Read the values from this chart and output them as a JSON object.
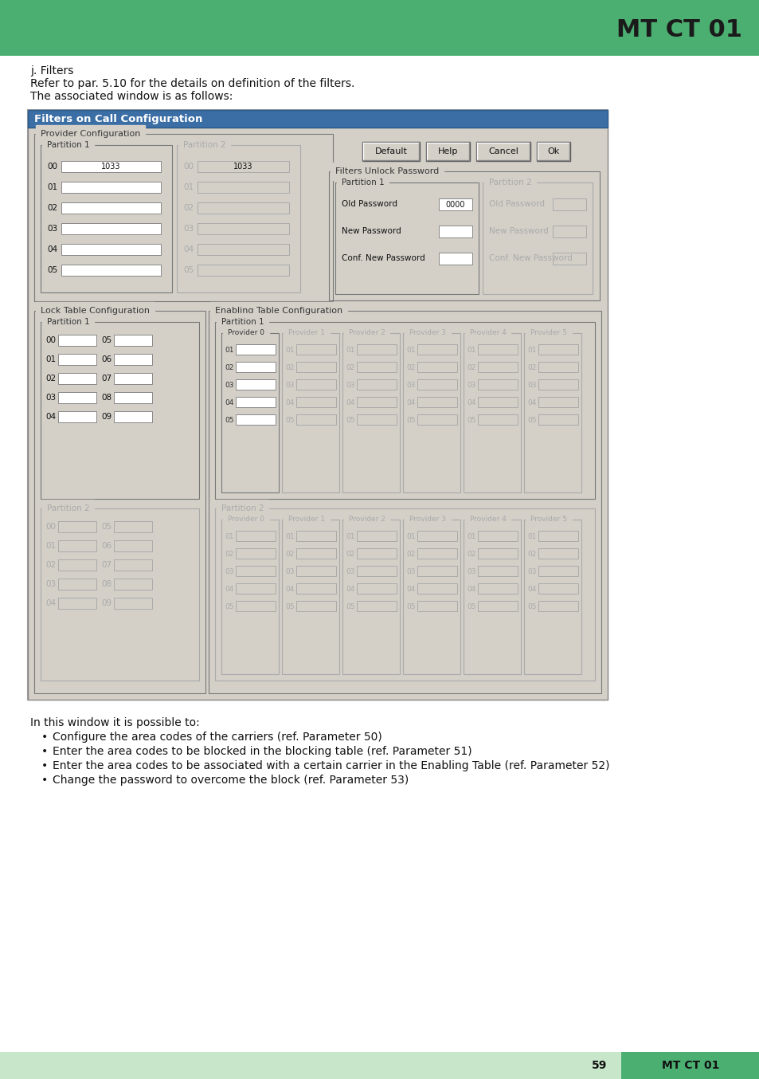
{
  "title_bar_color": "#4caf72",
  "title_bar_text": "MT CT 01",
  "footer_bar_light": "#c8e6c9",
  "footer_bar_dark": "#4caf72",
  "footer_page": "59",
  "footer_text": "MT CT 01",
  "bg_color": "#ffffff",
  "section_title": "j. Filters",
  "body_lines": [
    "Refer to par. 5.10 for the details on definition of the filters.",
    "The associated window is as follows:"
  ],
  "dialog_title": "Filters on Call Configuration",
  "dialog_bg": "#d4d0c8",
  "bullet_points": [
    "Configure the area codes of the carriers (ref. Parameter 50)",
    "Enter the area codes to be blocked in the blocking table (ref. Parameter 51)",
    "Enter the area codes to be associated with a certain carrier in the Enabling Table (ref. Parameter 52)",
    "Change the password to overcome the block (ref. Parameter 53)"
  ],
  "bottom_note": "In this window it is possible to:"
}
